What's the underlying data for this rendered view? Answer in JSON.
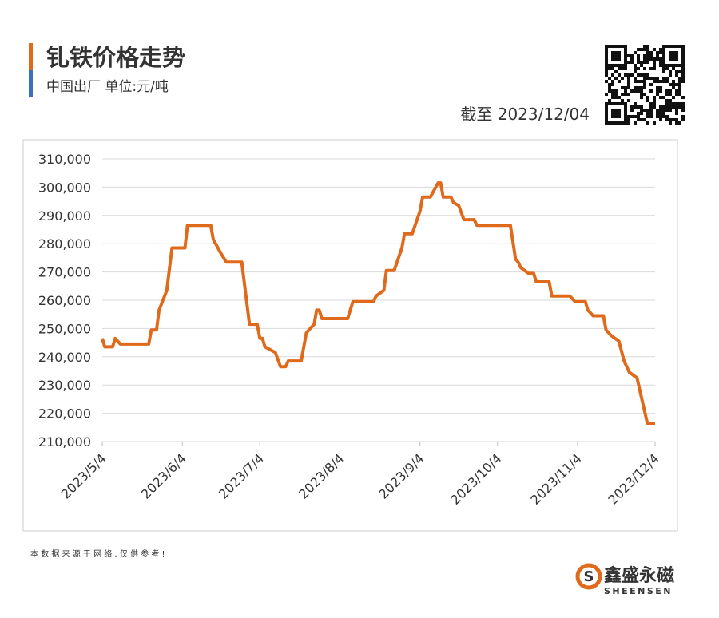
{
  "header": {
    "title": "钆铁价格走势",
    "subtitle": "中国出厂  单位:元/吨",
    "as_of": "截至 2023/12/04"
  },
  "chart_data": {
    "type": "line",
    "color": "#e06a1b",
    "grid": true,
    "x": [
      "2023/5/4",
      "2023/5/5",
      "2023/5/8",
      "2023/5/9",
      "2023/5/11",
      "2023/5/22",
      "2023/5/23",
      "2023/5/25",
      "2023/5/26",
      "2023/5/29",
      "2023/5/31",
      "2023/6/5",
      "2023/6/6",
      "2023/6/15",
      "2023/6/16",
      "2023/6/19",
      "2023/6/21",
      "2023/6/27",
      "2023/6/30",
      "2023/7/3",
      "2023/7/4",
      "2023/7/5",
      "2023/7/6",
      "2023/7/10",
      "2023/7/12",
      "2023/7/14",
      "2023/7/15",
      "2023/7/20",
      "2023/7/22",
      "2023/7/25",
      "2023/7/26",
      "2023/7/27",
      "2023/7/28",
      "2023/8/7",
      "2023/8/9",
      "2023/8/17",
      "2023/8/18",
      "2023/8/21",
      "2023/8/22",
      "2023/8/25",
      "2023/8/28",
      "2023/8/29",
      "2023/9/1",
      "2023/9/4",
      "2023/9/5",
      "2023/9/8",
      "2023/9/11",
      "2023/9/12",
      "2023/9/13",
      "2023/9/16",
      "2023/9/17",
      "2023/9/19",
      "2023/9/21",
      "2023/9/25",
      "2023/9/26",
      "2023/10/9",
      "2023/10/11",
      "2023/10/12",
      "2023/10/13",
      "2023/10/16",
      "2023/10/18",
      "2023/10/19",
      "2023/10/24",
      "2023/10/25",
      "2023/11/1",
      "2023/11/3",
      "2023/11/7",
      "2023/11/8",
      "2023/11/10",
      "2023/11/14",
      "2023/11/15",
      "2023/11/17",
      "2023/11/20",
      "2023/11/22",
      "2023/11/24",
      "2023/11/27",
      "2023/11/29",
      "2023/12/1",
      "2023/12/4"
    ],
    "series": [
      {
        "name": "钆铁",
        "color": "#e06a1b",
        "values": [
          246500,
          243500,
          243500,
          246500,
          244500,
          244500,
          249500,
          249500,
          256500,
          263500,
          278500,
          278500,
          286500,
          286500,
          281500,
          276500,
          273500,
          273500,
          251500,
          251500,
          246500,
          246500,
          243500,
          241500,
          236500,
          236500,
          238500,
          238500,
          248500,
          251500,
          256500,
          256500,
          253500,
          253500,
          259500,
          259500,
          261500,
          263500,
          270500,
          270500,
          278500,
          283500,
          283500,
          291500,
          296500,
          296500,
          301500,
          301500,
          296500,
          296500,
          294500,
          293500,
          288500,
          288500,
          286500,
          286500,
          274500,
          273500,
          271500,
          269500,
          269500,
          266500,
          266500,
          261500,
          261500,
          259500,
          259500,
          256500,
          254500,
          254500,
          249500,
          247500,
          245500,
          238500,
          234500,
          232500,
          224500,
          216500,
          216500
        ]
      }
    ],
    "xlim": [
      "2023/5/4",
      "2023/12/4"
    ],
    "xticks": [
      "2023/5/4",
      "2023/6/4",
      "2023/7/4",
      "2023/8/4",
      "2023/9/4",
      "2023/10/4",
      "2023/11/4",
      "2023/12/4"
    ],
    "ylim": [
      210000,
      310000
    ],
    "yticks": [
      {
        "value": 210000,
        "label": "210,000"
      },
      {
        "value": 220000,
        "label": "220,000"
      },
      {
        "value": 230000,
        "label": "230,000"
      },
      {
        "value": 240000,
        "label": "240,000"
      },
      {
        "value": 250000,
        "label": "250,000"
      },
      {
        "value": 260000,
        "label": "260,000"
      },
      {
        "value": 270000,
        "label": "270,000"
      },
      {
        "value": 280000,
        "label": "280,000"
      },
      {
        "value": 290000,
        "label": "290,000"
      },
      {
        "value": 300000,
        "label": "300,000"
      },
      {
        "value": 310000,
        "label": "310,000"
      }
    ]
  },
  "footer": {
    "note": "本 数 据 来 源 于 网 络 , 仅 供 参 考 !",
    "brand": "鑫盛永磁",
    "brand_en": "SHEENSEN"
  }
}
